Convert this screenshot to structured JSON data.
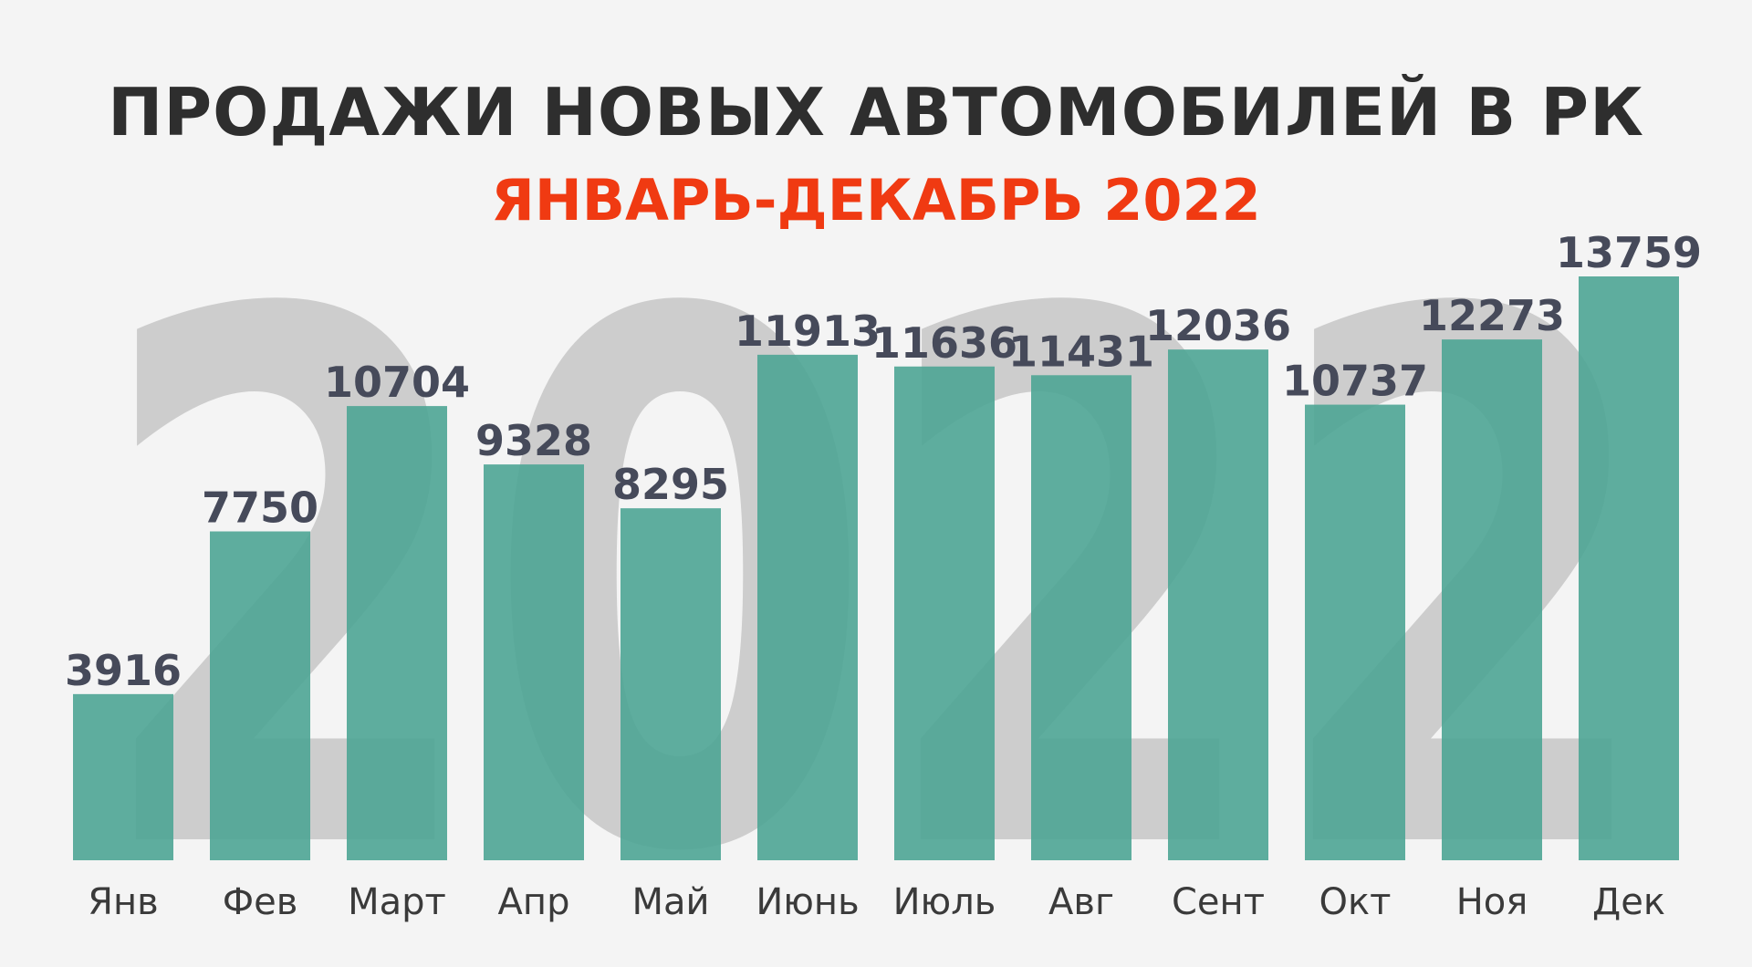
{
  "title": "ПРОДАЖИ НОВЫХ АВТОМОБИЛЕЙ В РК",
  "subtitle": "ЯНВАРЬ-ДЕКАБРЬ 2022",
  "watermark": "2022",
  "colors": {
    "background": "#f4f4f4",
    "bar": "#4ea595",
    "title": "#2e2e2e",
    "subtitle": "#f03a12",
    "value_label": "#464a5a",
    "category_label": "#3a3a3a",
    "watermark": "#cdcdcd"
  },
  "chart_data": {
    "type": "bar",
    "categories": [
      "Янв",
      "Фев",
      "Март",
      "Апр",
      "Май",
      "Июнь",
      "Июль",
      "Авг",
      "Сент",
      "Окт",
      "Ноя",
      "Дек"
    ],
    "values": [
      3916,
      7750,
      10704,
      9328,
      8295,
      11913,
      11636,
      11431,
      12036,
      10737,
      12273,
      13759
    ],
    "data_labels": [
      "3916",
      "7750",
      "10704",
      "9328",
      "8295",
      "11913",
      "11636",
      "11431",
      "12036",
      "10737",
      "12273",
      "13759"
    ],
    "title": "ПРОДАЖИ НОВЫХ АВТОМОБИЛЕЙ В РК",
    "subtitle": "ЯНВАРЬ-ДЕКАБРЬ 2022",
    "xlabel": "",
    "ylabel": "",
    "ylim": [
      0,
      13759
    ],
    "grid": false,
    "legend": false
  }
}
